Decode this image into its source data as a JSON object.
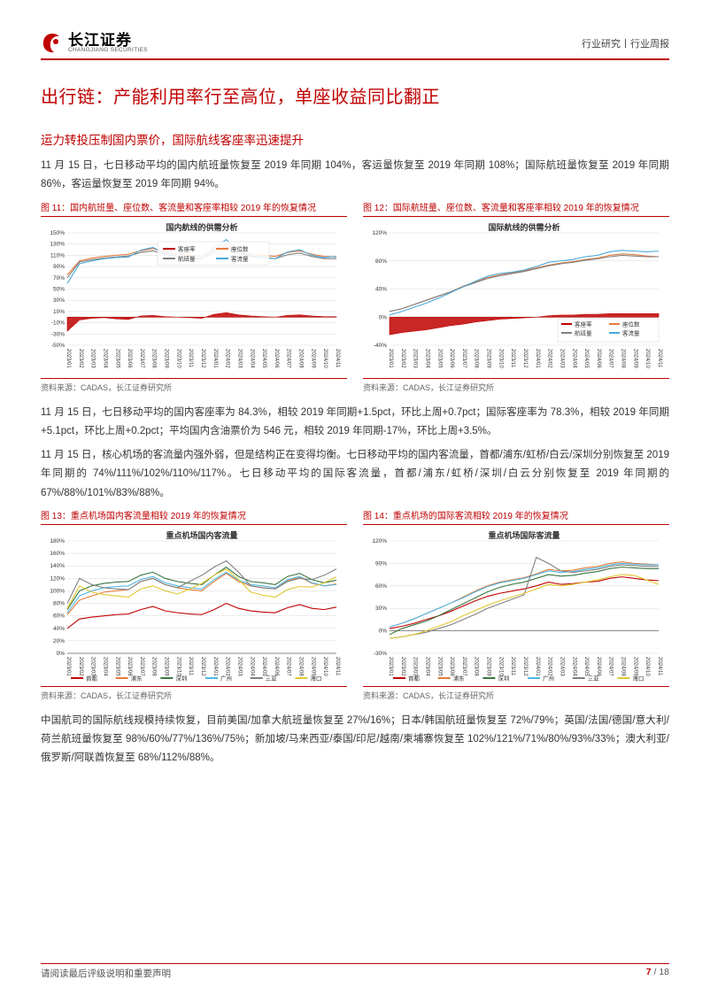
{
  "header": {
    "logo_cn": "长江证券",
    "logo_en": "CHANGJIANG SECURITIES",
    "right_text": "行业研究丨行业周报"
  },
  "title_main": "出行链：产能利用率行至高位，单座收益同比翻正",
  "subheading": "运力转投压制国内票价，国际航线客座率迅速提升",
  "para1": "11 月 15 日，七日移动平均的国内航班量恢复至 2019 年同期 104%，客运量恢复至 2019 年同期 108%；国际航班量恢复至 2019 年同期 86%，客运量恢复至 2019 年同期 94%。",
  "fig11": {
    "caption": "图 11：国内航班量、座位数、客流量和客座率相较 2019 年的恢复情况",
    "title": "国内航线的供需分析",
    "type": "line+area",
    "ylim": [
      -50,
      150
    ],
    "ytick_step": 20,
    "xlabels": [
      "2023/01",
      "2023/02",
      "2023/03",
      "2023/04",
      "2023/05",
      "2023/06",
      "2023/07",
      "2023/08",
      "2023/09",
      "2023/10",
      "2023/11",
      "2023/12",
      "2024/01",
      "2024/02",
      "2024/03",
      "2024/04",
      "2024/05",
      "2024/06",
      "2024/07",
      "2024/08",
      "2024/09",
      "2024/10",
      "2024/11"
    ],
    "series": {
      "load_factor": {
        "label": "客座率",
        "color": "#c00000",
        "type": "area",
        "values": [
          -25,
          -5,
          -2,
          -1,
          -3,
          -4,
          2,
          3,
          1,
          0,
          -1,
          -2,
          5,
          8,
          4,
          2,
          1,
          0,
          3,
          4,
          2,
          1,
          1
        ]
      },
      "seats": {
        "label": "座位数",
        "color": "#e57c3c",
        "type": "line",
        "values": [
          75,
          100,
          105,
          108,
          110,
          112,
          118,
          122,
          115,
          112,
          110,
          108,
          120,
          130,
          118,
          112,
          110,
          108,
          115,
          118,
          112,
          108,
          107
        ]
      },
      "flights": {
        "label": "航班量",
        "color": "#808080",
        "type": "line",
        "values": [
          70,
          98,
          102,
          105,
          107,
          109,
          115,
          118,
          112,
          108,
          106,
          104,
          116,
          126,
          114,
          108,
          106,
          104,
          111,
          114,
          108,
          104,
          104
        ]
      },
      "pax": {
        "label": "客流量",
        "color": "#4aa8d8",
        "type": "line",
        "values": [
          60,
          95,
          100,
          104,
          106,
          107,
          119,
          124,
          113,
          108,
          105,
          103,
          123,
          138,
          117,
          109,
          107,
          104,
          116,
          120,
          110,
          106,
          108
        ]
      }
    },
    "source": "资料来源：CADAS，长江证券研究所",
    "background_color": "#ffffff",
    "grid_color": "#d9d9d9",
    "axis_color": "#666666"
  },
  "fig12": {
    "caption": "图 12：国际航班量、座位数、客流量和客座率相较 2019 年的恢复情况",
    "title": "国际航线的供需分析",
    "type": "line+area",
    "ylim": [
      -40,
      120
    ],
    "ytick_step": 40,
    "xlabels": [
      "2023/01",
      "2023/02",
      "2023/03",
      "2023/04",
      "2023/05",
      "2023/06",
      "2023/07",
      "2023/08",
      "2023/09",
      "2023/10",
      "2023/11",
      "2023/12",
      "2024/01",
      "2024/02",
      "2024/03",
      "2024/04",
      "2024/05",
      "2024/06",
      "2024/07",
      "2024/08",
      "2024/09",
      "2024/10",
      "2024/11"
    ],
    "series": {
      "load_factor": {
        "label": "客座率",
        "color": "#c00000",
        "type": "area",
        "values": [
          -25,
          -22,
          -20,
          -18,
          -15,
          -12,
          -10,
          -7,
          -5,
          -3,
          -2,
          -1,
          0,
          2,
          3,
          3,
          4,
          4,
          5,
          5,
          5,
          5,
          5
        ]
      },
      "seats": {
        "label": "座位数",
        "color": "#e57c3c",
        "type": "line",
        "values": [
          8,
          12,
          18,
          24,
          30,
          36,
          44,
          50,
          56,
          60,
          63,
          66,
          70,
          74,
          77,
          79,
          82,
          84,
          88,
          90,
          89,
          87,
          86
        ]
      },
      "flights": {
        "label": "航班量",
        "color": "#808080",
        "type": "line",
        "values": [
          8,
          12,
          18,
          24,
          30,
          36,
          43,
          49,
          55,
          59,
          62,
          65,
          69,
          73,
          76,
          78,
          81,
          83,
          86,
          88,
          87,
          86,
          86
        ]
      },
      "pax": {
        "label": "客流量",
        "color": "#4aa8d8",
        "type": "line",
        "values": [
          3,
          8,
          14,
          20,
          27,
          35,
          43,
          51,
          58,
          62,
          64,
          67,
          72,
          78,
          80,
          82,
          86,
          88,
          93,
          95,
          94,
          93,
          94
        ]
      }
    },
    "source": "资料来源：CADAS，长江证券研究所",
    "background_color": "#ffffff",
    "grid_color": "#d9d9d9",
    "axis_color": "#666666"
  },
  "para2": "11 月 15 日，七日移动平均的国内客座率为 84.3%，相较 2019 年同期+1.5pct，环比上周+0.7pct；国际客座率为 78.3%，相较 2019 年同期+5.1pct，环比上周+0.2pct；平均国内含油票价为 546 元，相较 2019 年同期-17%，环比上周+3.5%。",
  "para3": "11 月 15 日，核心机场的客流量内强外弱，但是结构正在变得均衡。七日移动平均的国内客流量，首都/浦东/虹桥/白云/深圳分别恢复至 2019 年同期的 74%/111%/102%/110%/117%。七日移动平均的国际客流量，首都/浦东/虹桥/深圳/白云分别恢复至 2019 年同期的 67%/88%/101%/83%/88%。",
  "fig13": {
    "caption": "图 13：重点机场国内客流量相较 2019 年的恢复情况",
    "title": "重点机场国内客流量",
    "type": "line",
    "ylim": [
      0,
      180
    ],
    "ytick_step": 20,
    "xlabels": [
      "2023/01",
      "2023/02",
      "2023/03",
      "2023/04",
      "2023/05",
      "2023/06",
      "2023/07",
      "2023/08",
      "2023/09",
      "2023/10",
      "2023/11",
      "2023/12",
      "2024/01",
      "2024/02",
      "2024/03",
      "2024/04",
      "2024/05",
      "2024/06",
      "2024/07",
      "2024/08",
      "2024/09",
      "2024/10",
      "2024/11"
    ],
    "series": {
      "capital": {
        "label": "首都",
        "color": "#c00000",
        "values": [
          40,
          55,
          58,
          60,
          62,
          63,
          70,
          75,
          68,
          65,
          63,
          62,
          70,
          80,
          72,
          68,
          66,
          65,
          73,
          78,
          72,
          70,
          74
        ]
      },
      "pudong": {
        "label": "浦东",
        "color": "#e57c3c",
        "values": [
          62,
          85,
          92,
          98,
          100,
          102,
          115,
          120,
          110,
          105,
          102,
          100,
          115,
          128,
          115,
          108,
          105,
          103,
          116,
          122,
          112,
          108,
          111
        ]
      },
      "sz": {
        "label": "深圳",
        "color": "#3b7540",
        "values": [
          70,
          100,
          108,
          112,
          114,
          115,
          125,
          130,
          120,
          115,
          112,
          110,
          125,
          138,
          123,
          115,
          113,
          110,
          123,
          128,
          118,
          113,
          117
        ]
      },
      "gz": {
        "label": "广州",
        "color": "#50b8e8",
        "values": [
          65,
          92,
          100,
          105,
          107,
          108,
          118,
          123,
          113,
          108,
          105,
          103,
          118,
          130,
          117,
          110,
          108,
          105,
          118,
          123,
          113,
          108,
          110
        ]
      },
      "sy": {
        "label": "三亚",
        "color": "#808080",
        "values": [
          80,
          120,
          110,
          105,
          103,
          102,
          115,
          120,
          110,
          105,
          115,
          125,
          138,
          148,
          130,
          108,
          105,
          103,
          115,
          120,
          118,
          125,
          135
        ]
      },
      "hk": {
        "label": "海口",
        "color": "#e0c830",
        "values": [
          72,
          108,
          98,
          94,
          92,
          90,
          103,
          108,
          100,
          95,
          103,
          112,
          125,
          135,
          118,
          98,
          93,
          90,
          102,
          107,
          106,
          113,
          122
        ]
      }
    },
    "source": "资料来源：CADAS，长江证券研究所",
    "background_color": "#ffffff",
    "grid_color": "#d9d9d9",
    "axis_color": "#666666"
  },
  "fig14": {
    "caption": "图 14：重点机场的国际客流相较 2019 年的恢复情况",
    "title": "重点机场国际客流量",
    "type": "line",
    "ylim": [
      -30,
      120
    ],
    "ytick_step": 30,
    "xlabels": [
      "2023/01",
      "2023/02",
      "2023/03",
      "2023/04",
      "2023/05",
      "2023/06",
      "2023/07",
      "2023/08",
      "2023/09",
      "2023/10",
      "2023/11",
      "2023/12",
      "2024/01",
      "2024/02",
      "2024/03",
      "2024/04",
      "2024/05",
      "2024/06",
      "2024/07",
      "2024/08",
      "2024/09",
      "2024/10",
      "2024/11"
    ],
    "series": {
      "capital": {
        "label": "首都",
        "color": "#c00000",
        "values": [
          3,
          6,
          10,
          15,
          20,
          26,
          33,
          40,
          46,
          50,
          53,
          56,
          60,
          65,
          62,
          63,
          65,
          66,
          70,
          72,
          70,
          68,
          67
        ]
      },
      "pudong": {
        "label": "浦东",
        "color": "#e57c3c",
        "values": [
          5,
          10,
          16,
          23,
          30,
          37,
          45,
          53,
          60,
          65,
          68,
          71,
          76,
          82,
          80,
          81,
          84,
          86,
          90,
          92,
          90,
          89,
          88
        ]
      },
      "sz": {
        "label": "深圳",
        "color": "#3b7540",
        "values": [
          -5,
          3,
          8,
          13,
          20,
          28,
          36,
          44,
          52,
          58,
          62,
          65,
          70,
          75,
          73,
          74,
          77,
          79,
          83,
          85,
          84,
          83,
          83
        ]
      },
      "gz": {
        "label": "广州",
        "color": "#50b8e8",
        "values": [
          5,
          10,
          16,
          23,
          30,
          37,
          44,
          52,
          59,
          64,
          67,
          70,
          75,
          80,
          78,
          79,
          82,
          84,
          88,
          90,
          89,
          88,
          88
        ]
      },
      "sy": {
        "label": "三亚",
        "color": "#808080",
        "values": [
          -10,
          -8,
          -5,
          -2,
          3,
          8,
          15,
          22,
          30,
          36,
          42,
          48,
          98,
          90,
          80,
          78,
          80,
          82,
          86,
          88,
          87,
          86,
          86
        ]
      },
      "hk": {
        "label": "海口",
        "color": "#e0c830",
        "values": [
          -10,
          -8,
          -5,
          0,
          6,
          12,
          20,
          27,
          34,
          40,
          45,
          50,
          56,
          62,
          60,
          62,
          65,
          68,
          72,
          75,
          74,
          68,
          62
        ]
      }
    },
    "source": "资料来源：CADAS，长江证券研究所",
    "background_color": "#ffffff",
    "grid_color": "#d9d9d9",
    "axis_color": "#666666"
  },
  "para4": "中国航司的国际航线规模持续恢复，目前美国/加拿大航班量恢复至 27%/16%；日本/韩国航班量恢复至 72%/79%；英国/法国/德国/意大利/荷兰航班量恢复至 98%/60%/77%/136%/75%；新加坡/马来西亚/泰国/印尼/越南/柬埔寨恢复至 102%/121%/71%/80%/93%/33%；澳大利亚/俄罗斯/阿联酋恢复至 68%/112%/88%。",
  "footer": {
    "left_text": "请阅读最后评级说明和重要声明",
    "page_current": "7",
    "page_total": "18"
  }
}
